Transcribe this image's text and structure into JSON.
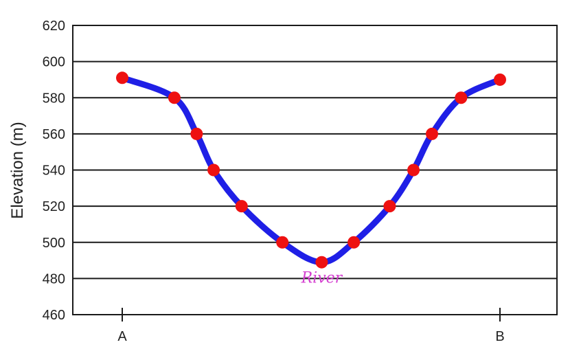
{
  "chart_data": {
    "type": "line",
    "title": "",
    "xlabel": "",
    "ylabel": "Elevation (m)",
    "ylim": [
      460,
      620
    ],
    "yticks": [
      "460",
      "480",
      "500",
      "520",
      "540",
      "560",
      "580",
      "600",
      "620"
    ],
    "x_labels": [
      "A",
      "B"
    ],
    "grid": true,
    "series": [
      {
        "points": [
          {
            "x": 0.0,
            "y": 591
          },
          {
            "x": 0.138,
            "y": 580
          },
          {
            "x": 0.197,
            "y": 560
          },
          {
            "x": 0.242,
            "y": 540
          },
          {
            "x": 0.316,
            "y": 520
          },
          {
            "x": 0.424,
            "y": 500
          },
          {
            "x": 0.528,
            "y": 489
          },
          {
            "x": 0.613,
            "y": 500
          },
          {
            "x": 0.708,
            "y": 520
          },
          {
            "x": 0.771,
            "y": 540
          },
          {
            "x": 0.82,
            "y": 560
          },
          {
            "x": 0.897,
            "y": 580
          },
          {
            "x": 1.0,
            "y": 590
          }
        ],
        "line_color": "#1f1fe6",
        "marker_color": "#ee1111"
      }
    ],
    "annotations": [
      {
        "text": "River",
        "x": 0.528,
        "y": 489,
        "color": "#d43fd0"
      }
    ]
  }
}
